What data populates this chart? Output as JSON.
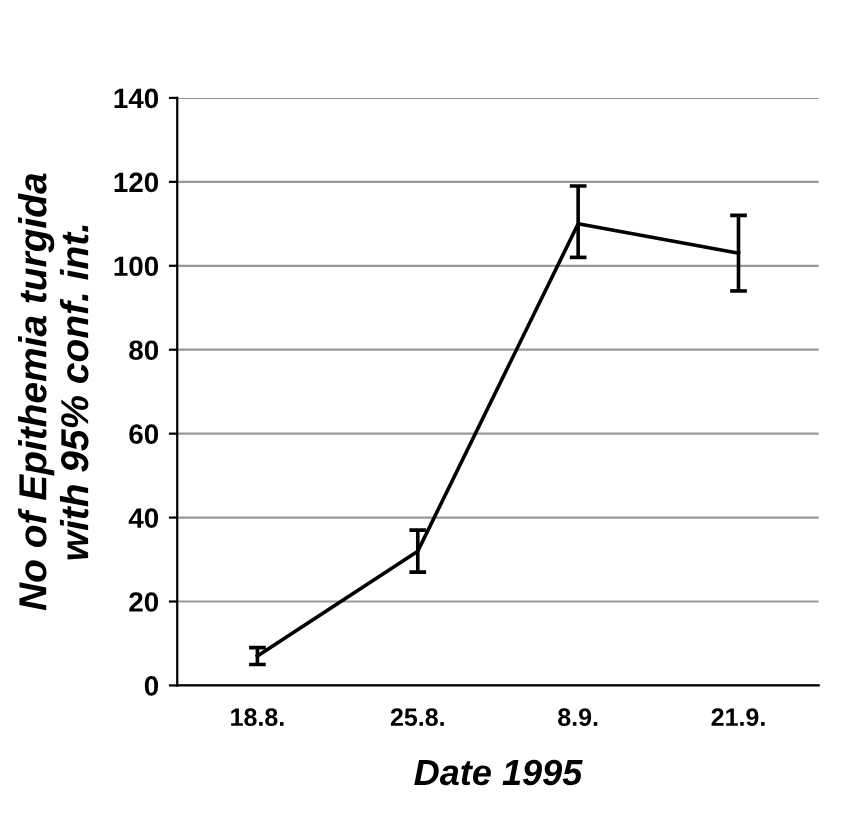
{
  "chart_data": {
    "type": "line",
    "xlabel": "Date 1995",
    "ylabel": "No of Epithemia turgida\nwith 95% conf. int.",
    "categories": [
      "18.8.",
      "25.8.",
      "8.9.",
      "21.9."
    ],
    "series": [
      {
        "color": "#000000",
        "values": [
          7,
          32,
          110,
          103
        ],
        "errors": [
          2,
          5,
          [
            102,
            119
          ],
          [
            94,
            112
          ]
        ]
      }
    ],
    "ylim": [
      0,
      140
    ],
    "yticks": [
      0,
      20,
      40,
      60,
      80,
      100,
      120,
      140
    ],
    "grid": "y",
    "marker": "none",
    "line_style": "solid",
    "legend": false
  }
}
